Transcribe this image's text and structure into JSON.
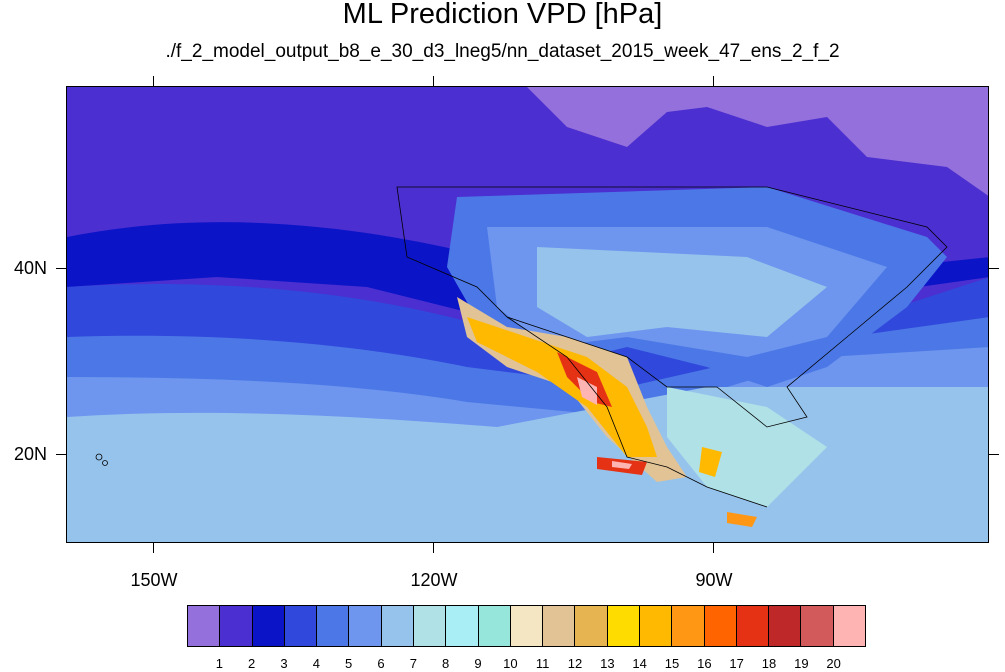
{
  "title": "ML Prediction VPD [hPa]",
  "subtitle": "./f_2_model_output_b8_e_30_d3_lneg5/nn_dataset_2015_week_47_ens_2_f_2",
  "axes": {
    "lat_labels": [
      "40N",
      "20N"
    ],
    "lon_labels": [
      "150W",
      "120W",
      "90W"
    ]
  },
  "colorbar": {
    "labels": [
      "1",
      "2",
      "3",
      "4",
      "5",
      "6",
      "7",
      "8",
      "9",
      "10",
      "11",
      "12",
      "13",
      "14",
      "15",
      "16",
      "17",
      "18",
      "19",
      "20"
    ],
    "colors": [
      "#9370db",
      "#4b2fd0",
      "#0c14c8",
      "#3048dc",
      "#4b78e6",
      "#6e96ee",
      "#96c3ec",
      "#afe1e6",
      "#aaeef5",
      "#96e6dc",
      "#f5e6c3",
      "#e1c396",
      "#e6b450",
      "#ffdc00",
      "#ffb900",
      "#ff9614",
      "#ff6400",
      "#e63214",
      "#be2828",
      "#d25a5a",
      "#ffb4b4"
    ]
  }
}
